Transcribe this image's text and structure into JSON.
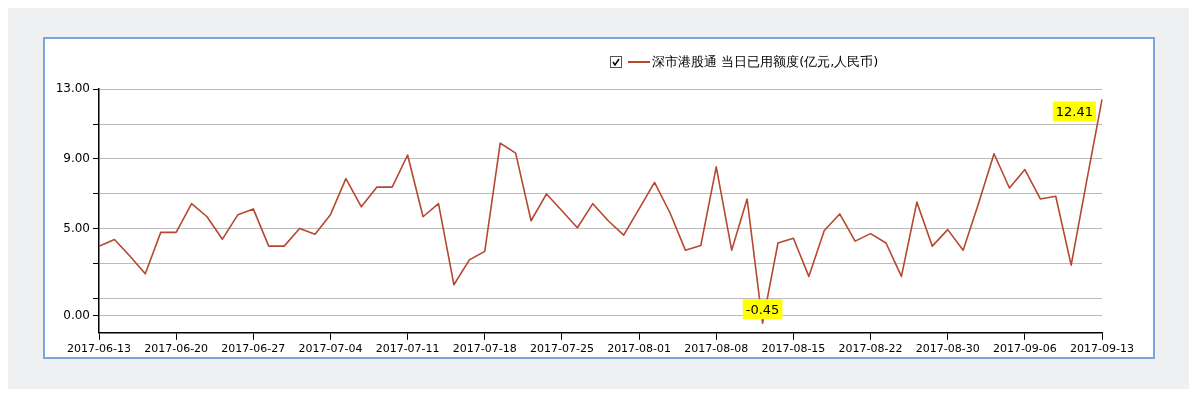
{
  "chart_data": {
    "type": "line",
    "categories": [
      "2017-06-13",
      null,
      null,
      null,
      null,
      "2017-06-20",
      null,
      null,
      null,
      null,
      "2017-06-27",
      null,
      null,
      null,
      null,
      "2017-07-04",
      null,
      null,
      null,
      null,
      "2017-07-11",
      null,
      null,
      null,
      null,
      "2017-07-18",
      null,
      null,
      null,
      null,
      "2017-07-25",
      null,
      null,
      null,
      null,
      "2017-08-01",
      null,
      null,
      null,
      null,
      "2017-08-08",
      null,
      null,
      null,
      null,
      "2017-08-15",
      null,
      null,
      null,
      null,
      "2017-08-22",
      null,
      null,
      null,
      null,
      "2017-08-30",
      null,
      null,
      null,
      null,
      "2017-09-06",
      null,
      null,
      null,
      null,
      "2017-09-13"
    ],
    "series": [
      {
        "name": "深市港股通 当日已用额度(亿元,人民币)",
        "color": "#b5482f",
        "values": [
          3.98,
          4.36,
          3.41,
          2.39,
          4.77,
          4.77,
          6.42,
          5.67,
          4.38,
          5.79,
          6.12,
          3.98,
          3.98,
          5.0,
          4.66,
          5.79,
          7.86,
          6.24,
          7.37,
          7.37,
          9.22,
          5.67,
          6.42,
          1.76,
          3.19,
          3.68,
          9.9,
          9.33,
          5.44,
          6.98,
          6.01,
          5.04,
          6.42,
          5.44,
          4.61,
          6.12,
          7.64,
          5.9,
          3.75,
          4.02,
          8.54,
          3.75,
          6.69,
          -0.45,
          4.16,
          4.43,
          2.24,
          4.88,
          5.83,
          4.27,
          4.7,
          4.16,
          2.24,
          6.51,
          3.98,
          4.93,
          3.75,
          6.44,
          9.29,
          7.32,
          8.38,
          6.69,
          6.85,
          2.89,
          7.7,
          12.41
        ],
        "value_labels": [
          null,
          null,
          null,
          null,
          null,
          null,
          null,
          null,
          null,
          null,
          null,
          null,
          null,
          null,
          null,
          null,
          null,
          null,
          null,
          null,
          null,
          null,
          null,
          null,
          null,
          null,
          null,
          null,
          null,
          null,
          null,
          null,
          null,
          null,
          null,
          null,
          null,
          null,
          null,
          null,
          null,
          null,
          null,
          "-0.45",
          null,
          null,
          null,
          null,
          null,
          null,
          null,
          null,
          null,
          null,
          null,
          null,
          null,
          null,
          null,
          null,
          null,
          null,
          null,
          null,
          null,
          "12.41"
        ]
      }
    ],
    "ylim": [
      -1,
      13
    ],
    "yticks": [
      {
        "value": 0,
        "label": "0.00"
      },
      {
        "value": 1,
        "label": null
      },
      {
        "value": 3,
        "label": null
      },
      {
        "value": 5,
        "label": "5.00"
      },
      {
        "value": 7,
        "label": null
      },
      {
        "value": 9,
        "label": "9.00"
      },
      {
        "value": 11,
        "label": null
      },
      {
        "value": 13,
        "label": "13.00"
      }
    ],
    "grid": "y",
    "legend": "top",
    "marker": "none",
    "line_style": "solid"
  }
}
